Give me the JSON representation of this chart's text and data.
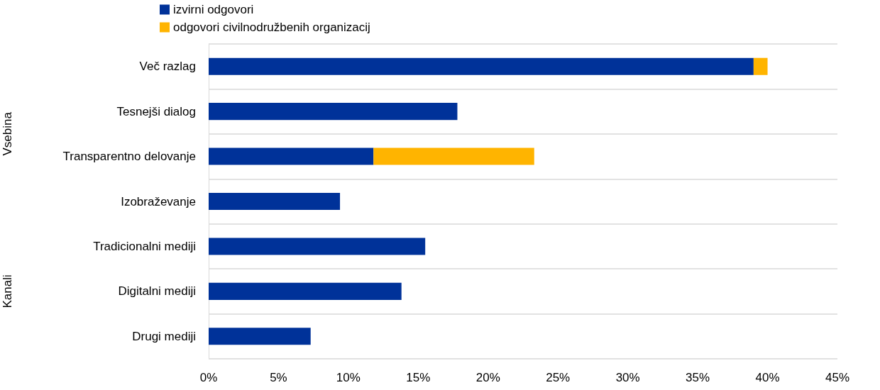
{
  "chart_data": {
    "type": "bar",
    "orientation": "horizontal",
    "stacked": true,
    "categories": [
      "Več razlag",
      "Tesnejši dialog",
      "Transparentno delovanje",
      "Izobraževanje",
      "Tradicionalni mediji",
      "Digitalni mediji",
      "Drugi mediji"
    ],
    "series": [
      {
        "name": "izvirni odgovori",
        "color": "#003299",
        "values": [
          39,
          17.8,
          11.8,
          9.4,
          15.5,
          13.8,
          7.3
        ]
      },
      {
        "name": "odgovori civilnodružbenih organizacij",
        "color": "#ffb400",
        "values": [
          1,
          null,
          11.5,
          null,
          null,
          null,
          null
        ]
      }
    ],
    "xlim": [
      0,
      45
    ],
    "xticks": [
      {
        "value": 0,
        "label": "0%"
      },
      {
        "value": 5,
        "label": "5%"
      },
      {
        "value": 10,
        "label": "10%"
      },
      {
        "value": 15,
        "label": "15%"
      },
      {
        "value": 20,
        "label": "20%"
      },
      {
        "value": 25,
        "label": "25%"
      },
      {
        "value": 30,
        "label": "30%"
      },
      {
        "value": 35,
        "label": "35%"
      },
      {
        "value": 40,
        "label": "40%"
      },
      {
        "value": 45,
        "label": "45%"
      }
    ],
    "grid": "y",
    "legend": "top left",
    "annotations": [
      "Vsebina",
      "Kanali"
    ]
  }
}
